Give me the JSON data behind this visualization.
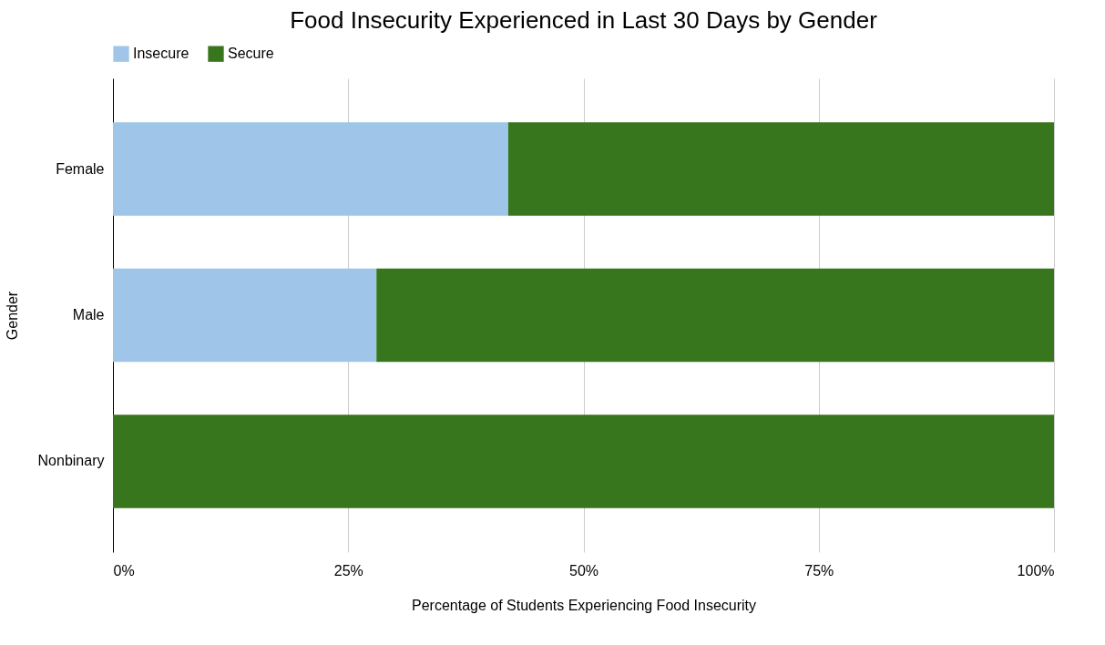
{
  "chart_data": {
    "type": "bar",
    "title": "Food Insecurity Experienced in Last 30 Days by Gender",
    "xlabel": "Percentage of Students Experiencing Food Insecurity",
    "ylabel": "Gender",
    "orientation": "horizontal",
    "stacked": true,
    "categories": [
      "Female",
      "Male",
      "Nonbinary"
    ],
    "series": [
      {
        "name": "Insecure",
        "color": "#9fc5e8",
        "values": [
          42,
          28,
          0
        ]
      },
      {
        "name": "Secure",
        "color": "#38761d",
        "values": [
          58,
          72,
          100
        ]
      }
    ],
    "xlim": [
      0,
      100
    ],
    "xticks": [
      {
        "value": 0,
        "label": "0%"
      },
      {
        "value": 25,
        "label": "25%"
      },
      {
        "value": 50,
        "label": "50%"
      },
      {
        "value": 75,
        "label": "75%"
      },
      {
        "value": 100,
        "label": "100%"
      }
    ],
    "grid": "x",
    "legend": "top"
  }
}
